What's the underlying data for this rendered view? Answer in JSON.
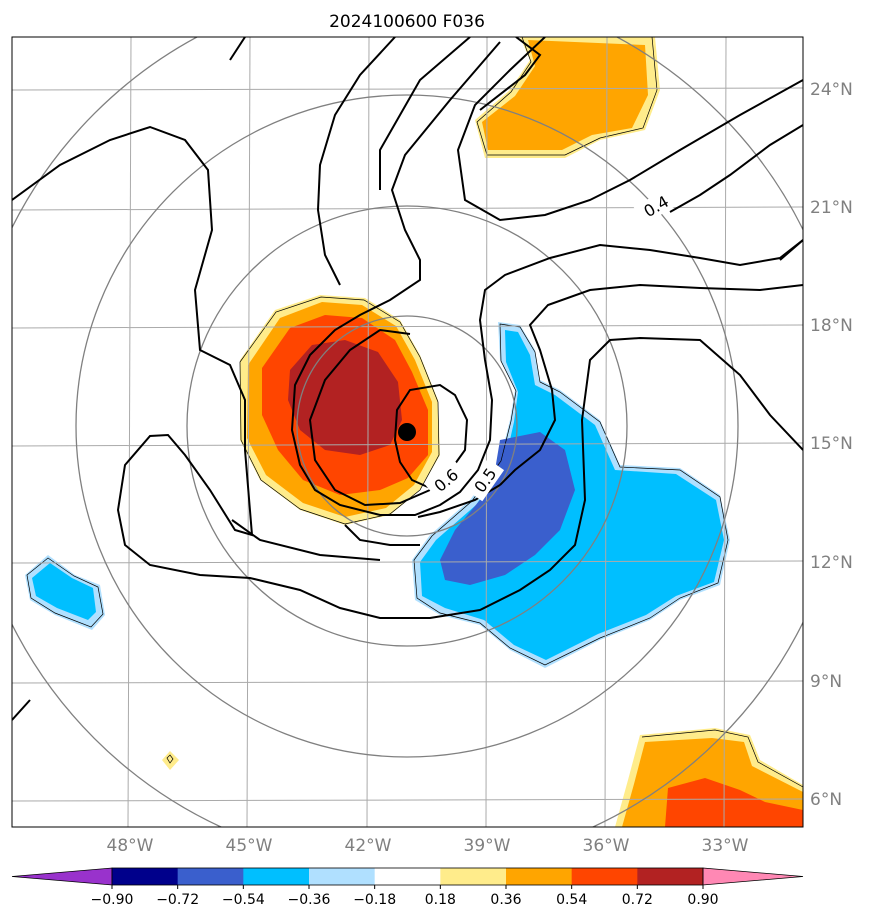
{
  "title": "2024100600 F036",
  "lon_ticks": [
    "48°W",
    "45°W",
    "42°W",
    "39°W",
    "36°W",
    "33°W"
  ],
  "lat_ticks": [
    "24°N",
    "21°N",
    "18°N",
    "15°N",
    "12°N",
    "9°N",
    "6°N"
  ],
  "contour_labels": [
    "0.4",
    "0.5",
    "0.6"
  ],
  "colorbar": {
    "ticks": [
      "−0.90",
      "−0.72",
      "−0.54",
      "−0.36",
      "−0.18",
      "0.18",
      "0.36",
      "0.54",
      "0.72",
      "0.90"
    ],
    "colors": [
      "#9932cc",
      "#00008b",
      "#3a5fcd",
      "#00bfff",
      "#b0e0ff",
      "#ffffff",
      "#ffec8b",
      "#ffa500",
      "#ff4500",
      "#b22222",
      "#ff88b4"
    ]
  },
  "storm_center": {
    "lon": -41.0,
    "lat": 15.3
  }
}
